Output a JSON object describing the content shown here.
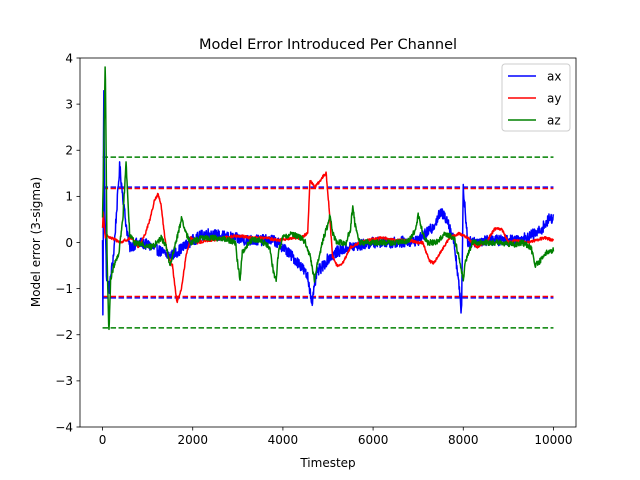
{
  "chart_data": {
    "type": "line",
    "title": "Model Error Introduced Per Channel",
    "xlabel": "Timestep",
    "ylabel": "Model error (3-sigma)",
    "xlim": [
      -500,
      10500
    ],
    "ylim": [
      -4,
      4
    ],
    "xticks": [
      0,
      2000,
      4000,
      6000,
      8000,
      10000
    ],
    "xtick_labels": [
      "0",
      "2000",
      "4000",
      "6000",
      "8000",
      "10000"
    ],
    "yticks": [
      -4,
      -3,
      -2,
      -1,
      0,
      1,
      2,
      3,
      4
    ],
    "ytick_labels": [
      "−4",
      "−3",
      "−2",
      "−1",
      "0",
      "1",
      "2",
      "3",
      "4"
    ],
    "legend_position": "top-right",
    "series": [
      {
        "name": "ax",
        "color": "#0000ff",
        "noise": 0.12,
        "points": [
          [
            0,
            0
          ],
          [
            10,
            -2.1
          ],
          [
            25,
            3.7
          ],
          [
            45,
            1.0
          ],
          [
            90,
            -0.8
          ],
          [
            150,
            -1.0
          ],
          [
            250,
            -0.2
          ],
          [
            380,
            1.65
          ],
          [
            450,
            1.0
          ],
          [
            520,
            0.4
          ],
          [
            600,
            -0.1
          ],
          [
            800,
            0
          ],
          [
            1000,
            -0.05
          ],
          [
            1200,
            -0.15
          ],
          [
            1500,
            -0.3
          ],
          [
            1800,
            -0.1
          ],
          [
            2000,
            0.05
          ],
          [
            2300,
            0.2
          ],
          [
            2600,
            0.15
          ],
          [
            2900,
            0.1
          ],
          [
            3200,
            0.05
          ],
          [
            3500,
            0.05
          ],
          [
            3800,
            0.05
          ],
          [
            4000,
            -0.1
          ],
          [
            4200,
            -0.3
          ],
          [
            4400,
            -0.5
          ],
          [
            4550,
            -0.75
          ],
          [
            4650,
            -1.3
          ],
          [
            4750,
            -0.65
          ],
          [
            4900,
            -0.5
          ],
          [
            5000,
            -0.35
          ],
          [
            5200,
            -0.2
          ],
          [
            5500,
            -0.1
          ],
          [
            6000,
            0
          ],
          [
            6500,
            0
          ],
          [
            7000,
            0.05
          ],
          [
            7300,
            0.3
          ],
          [
            7500,
            0.65
          ],
          [
            7650,
            0.5
          ],
          [
            7800,
            0
          ],
          [
            7900,
            -0.9
          ],
          [
            7960,
            -1.55
          ],
          [
            8000,
            1.2
          ],
          [
            8100,
            0
          ],
          [
            8500,
            0.05
          ],
          [
            9000,
            0.05
          ],
          [
            9400,
            0.1
          ],
          [
            9700,
            0.25
          ],
          [
            9900,
            0.5
          ],
          [
            10000,
            0.55
          ]
        ]
      },
      {
        "name": "ay",
        "color": "#ff0000",
        "noise": 0.03,
        "points": [
          [
            0,
            0.3
          ],
          [
            15,
            0.65
          ],
          [
            60,
            0.1
          ],
          [
            100,
            0.15
          ],
          [
            200,
            0.1
          ],
          [
            300,
            0.05
          ],
          [
            400,
            0
          ],
          [
            500,
            0.05
          ],
          [
            650,
            0.1
          ],
          [
            800,
            -0.1
          ],
          [
            950,
            0.2
          ],
          [
            1050,
            0.5
          ],
          [
            1150,
            0.9
          ],
          [
            1230,
            1.05
          ],
          [
            1300,
            0.8
          ],
          [
            1380,
            0.1
          ],
          [
            1450,
            -0.3
          ],
          [
            1550,
            -0.5
          ],
          [
            1650,
            -1.3
          ],
          [
            1750,
            -1.0
          ],
          [
            1850,
            -0.3
          ],
          [
            1950,
            0.1
          ],
          [
            2100,
            0
          ],
          [
            2400,
            0.05
          ],
          [
            2700,
            0.1
          ],
          [
            3000,
            0.15
          ],
          [
            3300,
            0.1
          ],
          [
            3600,
            0.1
          ],
          [
            3900,
            0.05
          ],
          [
            4200,
            0.1
          ],
          [
            4400,
            0.1
          ],
          [
            4550,
            0.2
          ],
          [
            4600,
            1.35
          ],
          [
            4700,
            1.2
          ],
          [
            4800,
            1.3
          ],
          [
            4900,
            1.45
          ],
          [
            4960,
            1.5
          ],
          [
            5020,
            0.8
          ],
          [
            5100,
            -0.3
          ],
          [
            5200,
            -0.5
          ],
          [
            5300,
            -0.5
          ],
          [
            5400,
            -0.3
          ],
          [
            5500,
            -0.1
          ],
          [
            5700,
            0
          ],
          [
            5900,
            0.05
          ],
          [
            6200,
            0.1
          ],
          [
            6500,
            0.05
          ],
          [
            6800,
            0.05
          ],
          [
            7000,
            0
          ],
          [
            7100,
            0
          ],
          [
            7250,
            -0.4
          ],
          [
            7350,
            -0.45
          ],
          [
            7500,
            -0.2
          ],
          [
            7700,
            0.1
          ],
          [
            7900,
            0.2
          ],
          [
            8100,
            0.1
          ],
          [
            8300,
            -0.1
          ],
          [
            8500,
            0
          ],
          [
            8700,
            0.3
          ],
          [
            8850,
            0.3
          ],
          [
            9000,
            0
          ],
          [
            9200,
            0.05
          ],
          [
            9400,
            0
          ],
          [
            9600,
            0.05
          ],
          [
            9800,
            0.1
          ],
          [
            10000,
            0.05
          ]
        ]
      },
      {
        "name": "az",
        "color": "#008000",
        "noise": 0.06,
        "points": [
          [
            0,
            0.5
          ],
          [
            30,
            2.2
          ],
          [
            60,
            4.0
          ],
          [
            100,
            -0.3
          ],
          [
            140,
            -2.0
          ],
          [
            180,
            -0.8
          ],
          [
            250,
            -0.5
          ],
          [
            350,
            -0.3
          ],
          [
            450,
            0.5
          ],
          [
            520,
            1.75
          ],
          [
            560,
            1.0
          ],
          [
            600,
            0.2
          ],
          [
            700,
            0
          ],
          [
            900,
            -0.05
          ],
          [
            1100,
            -0.1
          ],
          [
            1300,
            0.1
          ],
          [
            1400,
            -0.05
          ],
          [
            1500,
            -0.5
          ],
          [
            1600,
            -0.1
          ],
          [
            1750,
            0.5
          ],
          [
            1850,
            0.2
          ],
          [
            1950,
            0
          ],
          [
            2200,
            0.1
          ],
          [
            2500,
            0.1
          ],
          [
            2800,
            0.05
          ],
          [
            2950,
            0
          ],
          [
            3000,
            -0.5
          ],
          [
            3050,
            -0.8
          ],
          [
            3100,
            -0.2
          ],
          [
            3300,
            0.05
          ],
          [
            3500,
            0.05
          ],
          [
            3700,
            -0.1
          ],
          [
            3800,
            -0.7
          ],
          [
            3850,
            -0.8
          ],
          [
            3900,
            -0.2
          ],
          [
            4000,
            0.1
          ],
          [
            4200,
            0.2
          ],
          [
            4400,
            0.1
          ],
          [
            4500,
            0
          ],
          [
            4600,
            -0.3
          ],
          [
            4700,
            -0.8
          ],
          [
            4800,
            -0.3
          ],
          [
            4900,
            0.1
          ],
          [
            5000,
            0.4
          ],
          [
            5050,
            0.6
          ],
          [
            5100,
            0.2
          ],
          [
            5200,
            0
          ],
          [
            5400,
            0
          ],
          [
            5500,
            0.3
          ],
          [
            5550,
            0.8
          ],
          [
            5600,
            0.4
          ],
          [
            5700,
            0
          ],
          [
            6000,
            0
          ],
          [
            6300,
            0
          ],
          [
            6600,
            0
          ],
          [
            6800,
            0.05
          ],
          [
            6950,
            0.3
          ],
          [
            7000,
            0.6
          ],
          [
            7100,
            0.2
          ],
          [
            7200,
            0
          ],
          [
            7400,
            0
          ],
          [
            7600,
            0.2
          ],
          [
            7800,
            0.1
          ],
          [
            7900,
            -0.3
          ],
          [
            8000,
            -0.8
          ],
          [
            8050,
            -0.4
          ],
          [
            8200,
            0
          ],
          [
            8500,
            0
          ],
          [
            8800,
            0
          ],
          [
            9100,
            -0.05
          ],
          [
            9300,
            0
          ],
          [
            9500,
            -0.1
          ],
          [
            9600,
            -0.5
          ],
          [
            9700,
            -0.4
          ],
          [
            9800,
            -0.25
          ],
          [
            10000,
            -0.15
          ]
        ]
      }
    ],
    "reference_lines": [
      {
        "name": "ax-bound-upper",
        "value": 1.2,
        "color": "#0000ff"
      },
      {
        "name": "ax-bound-lower",
        "value": -1.2,
        "color": "#0000ff"
      },
      {
        "name": "ay-bound-upper",
        "value": 1.17,
        "color": "#ff0000"
      },
      {
        "name": "ay-bound-lower",
        "value": -1.17,
        "color": "#ff0000"
      },
      {
        "name": "az-bound-upper",
        "value": 1.85,
        "color": "#008000"
      },
      {
        "name": "az-bound-lower",
        "value": -1.85,
        "color": "#008000"
      }
    ],
    "reference_line_xrange": [
      0,
      10000
    ]
  }
}
